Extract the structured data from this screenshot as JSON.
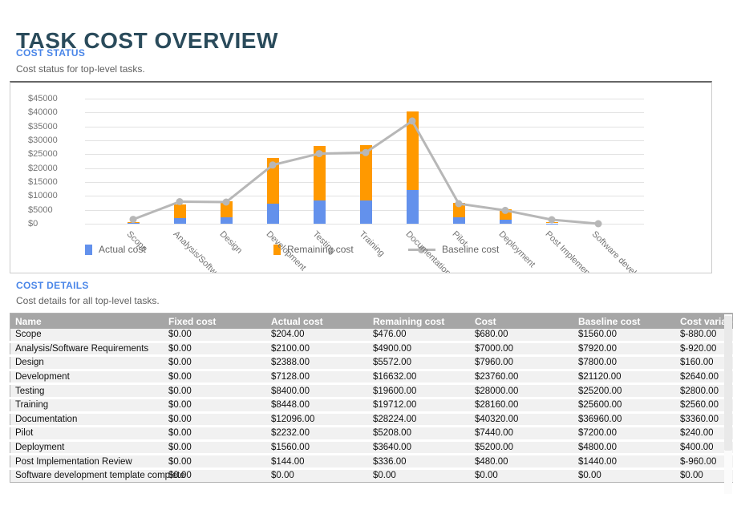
{
  "page": {
    "title": "TASK COST OVERVIEW"
  },
  "cost_status": {
    "heading": "COST STATUS",
    "subtitle": "Cost status for top-level tasks."
  },
  "chart_data": {
    "type": "bar",
    "subtype": "stacked-bars-with-line-overlay",
    "title": "",
    "xlabel": "",
    "ylabel": "",
    "categories": [
      "Scope",
      "Analysis/Software Requirements",
      "Design",
      "Development",
      "Testing",
      "Training",
      "Documentation",
      "Pilot",
      "Deployment",
      "Post Implementation Review",
      "Software development template complete"
    ],
    "series": [
      {
        "name": "Actual cost",
        "type": "bar",
        "color": "#6391ec",
        "values": [
          204,
          2100,
          2388,
          7128,
          8400,
          8448,
          12096,
          2232,
          1560,
          144,
          0
        ]
      },
      {
        "name": "Remaining cost",
        "type": "bar",
        "color": "#ff9900",
        "values": [
          476,
          4900,
          5572,
          16632,
          19600,
          19712,
          28224,
          5208,
          3640,
          336,
          0
        ]
      },
      {
        "name": "Baseline cost",
        "type": "line",
        "color": "#b7b7b7",
        "values": [
          1560,
          7920,
          7800,
          21120,
          25200,
          25600,
          36960,
          7200,
          4800,
          1440,
          0
        ]
      }
    ],
    "stacked": true,
    "ylim": [
      0,
      45000
    ],
    "y_tick_step": 5000,
    "y_tick_prefix": "$",
    "grid": true,
    "legend_position": "bottom",
    "x_label_rotation_deg": 45
  },
  "cost_details": {
    "heading": "COST DETAILS",
    "subtitle": "Cost details for all top-level tasks.",
    "table": {
      "columns": [
        "Name",
        "Fixed cost",
        "Actual cost",
        "Remaining cost",
        "Cost",
        "Baseline cost",
        "Cost variance"
      ],
      "rows": [
        [
          "Scope",
          "$0.00",
          "$204.00",
          "$476.00",
          "$680.00",
          "$1560.00",
          "$-880.00"
        ],
        [
          "Analysis/Software Requirements",
          "$0.00",
          "$2100.00",
          "$4900.00",
          "$7000.00",
          "$7920.00",
          "$-920.00"
        ],
        [
          "Design",
          "$0.00",
          "$2388.00",
          "$5572.00",
          "$7960.00",
          "$7800.00",
          "$160.00"
        ],
        [
          "Development",
          "$0.00",
          "$7128.00",
          "$16632.00",
          "$23760.00",
          "$21120.00",
          "$2640.00"
        ],
        [
          "Testing",
          "$0.00",
          "$8400.00",
          "$19600.00",
          "$28000.00",
          "$25200.00",
          "$2800.00"
        ],
        [
          "Training",
          "$0.00",
          "$8448.00",
          "$19712.00",
          "$28160.00",
          "$25600.00",
          "$2560.00"
        ],
        [
          "Documentation",
          "$0.00",
          "$12096.00",
          "$28224.00",
          "$40320.00",
          "$36960.00",
          "$3360.00"
        ],
        [
          "Pilot",
          "$0.00",
          "$2232.00",
          "$5208.00",
          "$7440.00",
          "$7200.00",
          "$240.00"
        ],
        [
          "Deployment",
          "$0.00",
          "$1560.00",
          "$3640.00",
          "$5200.00",
          "$4800.00",
          "$400.00"
        ],
        [
          "Post Implementation Review",
          "$0.00",
          "$144.00",
          "$336.00",
          "$480.00",
          "$1440.00",
          "$-960.00"
        ],
        [
          "Software development template complete",
          "$0.00",
          "$0.00",
          "$0.00",
          "$0.00",
          "$0.00",
          "$0.00"
        ]
      ]
    }
  },
  "colors": {
    "title_text": "#2a4b5b",
    "section_heading_text": "#4a86e8",
    "subtitle_text": "#5f5f5f",
    "actual_cost": "#6391ec",
    "remaining_cost": "#ff9900",
    "baseline_cost": "#b7b7b7",
    "axis_text": "#757575",
    "gridline": "#e2e2e2",
    "table_header_bg": "#a6a6a6",
    "table_row_bg": "#f1f1f1"
  }
}
